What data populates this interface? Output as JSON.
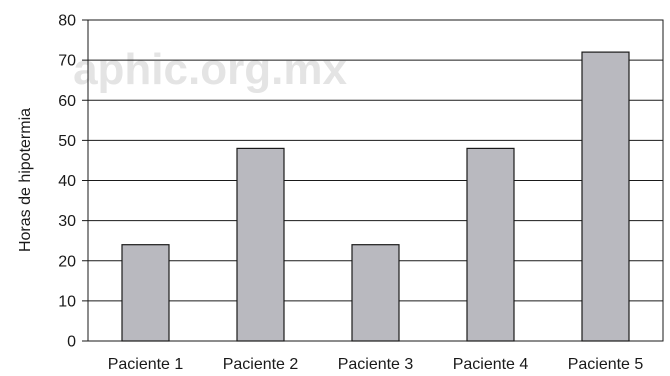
{
  "watermark": "aphic.org.mx",
  "colors": {
    "bar_fill": "#b9b9bf",
    "bar_stroke": "#1a1a1a",
    "grid": "#1a1a1a"
  },
  "chart_data": {
    "type": "bar",
    "categories": [
      "Paciente 1",
      "Paciente 2",
      "Paciente 3",
      "Paciente 4",
      "Paciente 5"
    ],
    "values": [
      24,
      48,
      24,
      48,
      72
    ],
    "title": "",
    "xlabel": "",
    "ylabel": "Horas de hipotermia",
    "ylim": [
      0,
      80
    ],
    "yticks": [
      0,
      10,
      20,
      30,
      40,
      50,
      60,
      70,
      80
    ],
    "grid": true,
    "legend": "none"
  }
}
